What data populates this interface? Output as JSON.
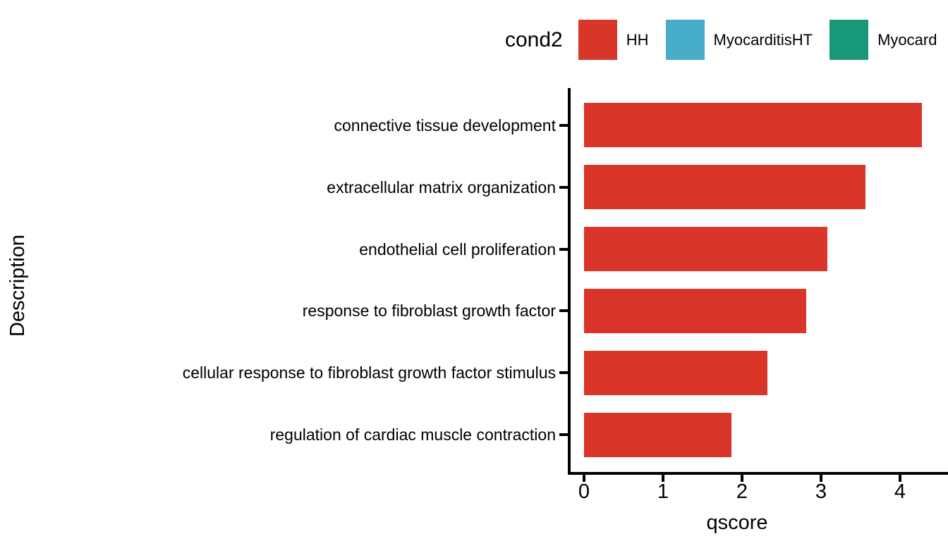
{
  "legend": {
    "title": "cond2",
    "items": [
      {
        "label": "HH",
        "color": "#d93529"
      },
      {
        "label": "MyocarditisHT",
        "color": "#47adc9"
      },
      {
        "label": "Myocard",
        "color": "#18987a"
      }
    ]
  },
  "chart_data": {
    "type": "bar",
    "orientation": "horizontal",
    "title": "",
    "xlabel": "qscore",
    "ylabel": "Description",
    "categories": [
      "connective tissue development",
      "extracellular matrix organization",
      "endothelial cell proliferation",
      "response to fibroblast growth factor",
      "cellular response to fibroblast growth factor stimulus",
      "regulation of cardiac muscle contraction"
    ],
    "series": [
      {
        "name": "HH",
        "color": "#d93529",
        "values": [
          4.28,
          3.56,
          3.08,
          2.81,
          2.32,
          1.87
        ]
      }
    ],
    "x_ticks": [
      0,
      1,
      2,
      3,
      4
    ],
    "xlim": [
      0,
      4.6
    ],
    "grid": false,
    "legend_position": "top"
  }
}
